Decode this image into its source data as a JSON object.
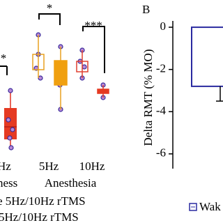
{
  "panel_a": {
    "significance": [
      "*",
      "*",
      "***"
    ],
    "groups": [
      "Hz",
      "5Hz",
      "10Hz"
    ],
    "conditions": [
      "ness",
      "Anesthesia"
    ],
    "legend": [
      "e 5Hz/10Hz rTMS",
      "5Hz/10Hz rTMS"
    ]
  },
  "chart_data": {
    "type": "bar",
    "panel_label": "B",
    "ylabel": "Delta RMT (% MO)",
    "categories": [
      null
    ],
    "series": [
      {
        "name": "Wak",
        "color": "#2a2aa0",
        "values": [
          -2.8
        ],
        "errors": [
          0.7
        ]
      }
    ],
    "ylim": [
      -6.7,
      0.3
    ],
    "yticks": [
      0,
      -2,
      -4,
      -6
    ]
  }
}
